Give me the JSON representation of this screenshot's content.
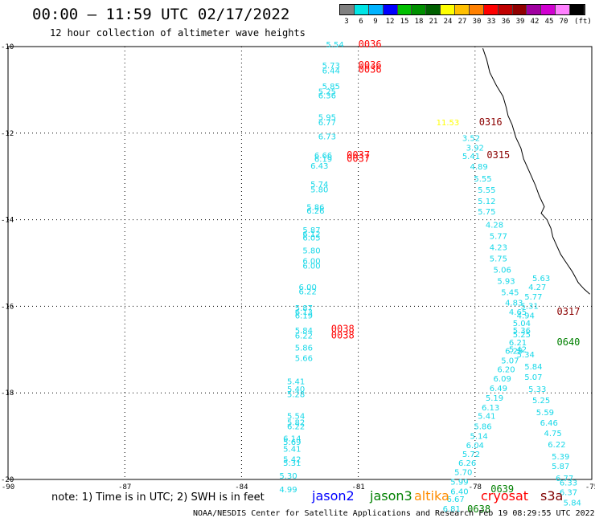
{
  "header": {
    "title": "00:00 – 11:59 UTC 02/17/2022",
    "subtitle": "12 hour collection of altimeter wave heights"
  },
  "colorbar": {
    "labels": [
      "3",
      "6",
      "9",
      "12",
      "15",
      "18",
      "21",
      "24",
      "27",
      "30",
      "33",
      "36",
      "39",
      "42",
      "45",
      "70",
      "(ft)"
    ],
    "colors": [
      "#808080",
      "#00e5e5",
      "#00b3ff",
      "#0000ff",
      "#00c000",
      "#009000",
      "#006000",
      "#ffff00",
      "#ffc000",
      "#ff8000",
      "#ff0000",
      "#c00000",
      "#900000",
      "#a000a0",
      "#d000d0",
      "#ff80ff",
      "#000000"
    ]
  },
  "note": "note: 1) Time is in UTC; 2) SWH is in feet",
  "legend": [
    {
      "name": "jason2",
      "color": "#0000ff"
    },
    {
      "name": "jason3",
      "color": "#008000"
    },
    {
      "name": "altika",
      "color": "#ff8c00"
    },
    {
      "name": "cryosat",
      "color": "#ff0000"
    },
    {
      "name": "s3a",
      "color": "#800000"
    }
  ],
  "footer": "NOAA/NESDIS Center for Satellite Applications and Research   Feb 19 08:29:55 UTC 2022",
  "chart_data": {
    "type": "scatter",
    "xlim": [
      -90,
      -75
    ],
    "ylim": [
      -20,
      -10
    ],
    "x_ticks": [
      "-90",
      "-87",
      "-84",
      "-81",
      "-78",
      "-75"
    ],
    "y_ticks": [
      "-10",
      "-12",
      "-14",
      "-16",
      "-18",
      "-20"
    ],
    "grid": true,
    "swh_labels": [
      {
        "lon": -81.6,
        "lat": -10.02,
        "text": "5.54",
        "color": "cyan"
      },
      {
        "lon": -81.7,
        "lat": -10.5,
        "text": "5.73",
        "color": "cyan"
      },
      {
        "lon": -81.7,
        "lat": -10.62,
        "text": "6.44",
        "color": "cyan"
      },
      {
        "lon": -81.7,
        "lat": -10.98,
        "text": "5.85",
        "color": "cyan"
      },
      {
        "lon": -81.8,
        "lat": -11.1,
        "text": "5.25",
        "color": "cyan"
      },
      {
        "lon": -81.8,
        "lat": -11.2,
        "text": "6.36",
        "color": "cyan"
      },
      {
        "lon": -81.8,
        "lat": -11.7,
        "text": "5.95",
        "color": "cyan"
      },
      {
        "lon": -81.8,
        "lat": -11.82,
        "text": "6.77",
        "color": "cyan"
      },
      {
        "lon": -81.8,
        "lat": -12.14,
        "text": "6.73",
        "color": "cyan"
      },
      {
        "lon": -81.9,
        "lat": -12.58,
        "text": "6.66",
        "color": "cyan"
      },
      {
        "lon": -81.9,
        "lat": -12.66,
        "text": "6.19",
        "color": "cyan"
      },
      {
        "lon": -82.0,
        "lat": -12.82,
        "text": "6.43",
        "color": "cyan"
      },
      {
        "lon": -82.0,
        "lat": -13.25,
        "text": "5.74",
        "color": "cyan"
      },
      {
        "lon": -82.0,
        "lat": -13.37,
        "text": "5.80",
        "color": "cyan"
      },
      {
        "lon": -82.1,
        "lat": -13.78,
        "text": "5.86",
        "color": "cyan"
      },
      {
        "lon": -82.1,
        "lat": -13.86,
        "text": "6.26",
        "color": "cyan"
      },
      {
        "lon": -82.2,
        "lat": -14.3,
        "text": "5.87",
        "color": "cyan"
      },
      {
        "lon": -82.2,
        "lat": -14.4,
        "text": "6.12",
        "color": "cyan"
      },
      {
        "lon": -82.2,
        "lat": -14.48,
        "text": "6.05",
        "color": "cyan"
      },
      {
        "lon": -82.2,
        "lat": -14.78,
        "text": "5.80",
        "color": "cyan"
      },
      {
        "lon": -82.2,
        "lat": -15.02,
        "text": "6.00",
        "color": "cyan"
      },
      {
        "lon": -82.2,
        "lat": -15.13,
        "text": "6.00",
        "color": "cyan"
      },
      {
        "lon": -82.3,
        "lat": -15.62,
        "text": "6.00",
        "color": "cyan"
      },
      {
        "lon": -82.3,
        "lat": -15.72,
        "text": "6.22",
        "color": "cyan"
      },
      {
        "lon": -82.4,
        "lat": -16.1,
        "text": "5.87",
        "color": "cyan"
      },
      {
        "lon": -82.4,
        "lat": -16.2,
        "text": "6.13",
        "color": "cyan"
      },
      {
        "lon": -82.4,
        "lat": -16.28,
        "text": "6.19",
        "color": "cyan"
      },
      {
        "lon": -82.4,
        "lat": -16.62,
        "text": "5.84",
        "color": "cyan"
      },
      {
        "lon": -82.4,
        "lat": -16.74,
        "text": "6.22",
        "color": "cyan"
      },
      {
        "lon": -82.4,
        "lat": -17.02,
        "text": "5.86",
        "color": "cyan"
      },
      {
        "lon": -82.4,
        "lat": -17.26,
        "text": "5.66",
        "color": "cyan"
      },
      {
        "lon": -82.6,
        "lat": -17.8,
        "text": "5.41",
        "color": "cyan"
      },
      {
        "lon": -82.6,
        "lat": -17.98,
        "text": "5.40",
        "color": "cyan"
      },
      {
        "lon": -82.6,
        "lat": -18.1,
        "text": "5.28",
        "color": "cyan"
      },
      {
        "lon": -82.6,
        "lat": -18.6,
        "text": "5.54",
        "color": "cyan"
      },
      {
        "lon": -82.6,
        "lat": -18.75,
        "text": "5.82",
        "color": "cyan"
      },
      {
        "lon": -82.6,
        "lat": -18.84,
        "text": "6.22",
        "color": "cyan"
      },
      {
        "lon": -82.7,
        "lat": -19.12,
        "text": "6.14",
        "color": "cyan"
      },
      {
        "lon": -82.7,
        "lat": -19.2,
        "text": "5.69",
        "color": "cyan"
      },
      {
        "lon": -82.7,
        "lat": -19.36,
        "text": "5.41",
        "color": "cyan"
      },
      {
        "lon": -82.7,
        "lat": -19.6,
        "text": "5.42",
        "color": "cyan"
      },
      {
        "lon": -82.7,
        "lat": -19.68,
        "text": "5.31",
        "color": "cyan"
      },
      {
        "lon": -82.8,
        "lat": -19.98,
        "text": "5.30",
        "color": "cyan"
      },
      {
        "lon": -82.8,
        "lat": -20.3,
        "text": "4.99",
        "color": "cyan"
      },
      {
        "lon": -78.7,
        "lat": -11.82,
        "text": "11.53",
        "color": "yellow"
      },
      {
        "lon": -78.1,
        "lat": -12.18,
        "text": "3.52",
        "color": "cyan"
      },
      {
        "lon": -78.0,
        "lat": -12.4,
        "text": "3.92",
        "color": "cyan"
      },
      {
        "lon": -78.1,
        "lat": -12.6,
        "text": "5.41",
        "color": "cyan"
      },
      {
        "lon": -77.9,
        "lat": -12.84,
        "text": "4.89",
        "color": "cyan"
      },
      {
        "lon": -77.8,
        "lat": -13.12,
        "text": "5.55",
        "color": "cyan"
      },
      {
        "lon": -77.7,
        "lat": -13.38,
        "text": "5.55",
        "color": "cyan"
      },
      {
        "lon": -77.7,
        "lat": -13.64,
        "text": "5.12",
        "color": "cyan"
      },
      {
        "lon": -77.7,
        "lat": -13.88,
        "text": "5.75",
        "color": "cyan"
      },
      {
        "lon": -77.5,
        "lat": -14.18,
        "text": "4.28",
        "color": "cyan"
      },
      {
        "lon": -77.4,
        "lat": -14.44,
        "text": "5.77",
        "color": "cyan"
      },
      {
        "lon": -77.4,
        "lat": -14.7,
        "text": "4.23",
        "color": "cyan"
      },
      {
        "lon": -77.4,
        "lat": -14.96,
        "text": "5.75",
        "color": "cyan"
      },
      {
        "lon": -77.3,
        "lat": -15.22,
        "text": "5.06",
        "color": "cyan"
      },
      {
        "lon": -77.2,
        "lat": -15.48,
        "text": "5.93",
        "color": "cyan"
      },
      {
        "lon": -77.1,
        "lat": -15.74,
        "text": "5.45",
        "color": "cyan"
      },
      {
        "lon": -77.0,
        "lat": -15.98,
        "text": "4.83",
        "color": "cyan"
      },
      {
        "lon": -76.9,
        "lat": -16.2,
        "text": "4.65",
        "color": "cyan"
      },
      {
        "lon": -76.7,
        "lat": -16.28,
        "text": "4.94",
        "color": "cyan"
      },
      {
        "lon": -76.6,
        "lat": -16.06,
        "text": "5.31",
        "color": "cyan"
      },
      {
        "lon": -76.5,
        "lat": -15.84,
        "text": "5.77",
        "color": "cyan"
      },
      {
        "lon": -76.4,
        "lat": -15.62,
        "text": "4.27",
        "color": "cyan"
      },
      {
        "lon": -76.3,
        "lat": -15.42,
        "text": "5.63",
        "color": "cyan"
      },
      {
        "lon": -76.8,
        "lat": -16.46,
        "text": "5.04",
        "color": "cyan"
      },
      {
        "lon": -76.8,
        "lat": -16.62,
        "text": "5.36",
        "color": "cyan"
      },
      {
        "lon": -76.8,
        "lat": -16.72,
        "text": "5.25",
        "color": "cyan"
      },
      {
        "lon": -76.9,
        "lat": -16.9,
        "text": "6.21",
        "color": "cyan"
      },
      {
        "lon": -76.9,
        "lat": -17.06,
        "text": "5.42",
        "color": "cyan"
      },
      {
        "lon": -77.0,
        "lat": -17.1,
        "text": "6.29",
        "color": "cyan"
      },
      {
        "lon": -76.7,
        "lat": -17.18,
        "text": "5.34",
        "color": "cyan"
      },
      {
        "lon": -77.1,
        "lat": -17.32,
        "text": "5.07",
        "color": "cyan"
      },
      {
        "lon": -76.5,
        "lat": -17.46,
        "text": "5.84",
        "color": "cyan"
      },
      {
        "lon": -77.2,
        "lat": -17.52,
        "text": "6.20",
        "color": "cyan"
      },
      {
        "lon": -76.5,
        "lat": -17.7,
        "text": "5.07",
        "color": "cyan"
      },
      {
        "lon": -77.3,
        "lat": -17.74,
        "text": "6.09",
        "color": "cyan"
      },
      {
        "lon": -77.4,
        "lat": -17.96,
        "text": "6.49",
        "color": "cyan"
      },
      {
        "lon": -76.4,
        "lat": -17.98,
        "text": "5.33",
        "color": "cyan"
      },
      {
        "lon": -77.5,
        "lat": -18.18,
        "text": "5.19",
        "color": "cyan"
      },
      {
        "lon": -76.3,
        "lat": -18.24,
        "text": "5.25",
        "color": "cyan"
      },
      {
        "lon": -77.6,
        "lat": -18.4,
        "text": "6.13",
        "color": "cyan"
      },
      {
        "lon": -76.2,
        "lat": -18.52,
        "text": "5.59",
        "color": "cyan"
      },
      {
        "lon": -77.7,
        "lat": -18.6,
        "text": "5.41",
        "color": "cyan"
      },
      {
        "lon": -76.1,
        "lat": -18.76,
        "text": "6.46",
        "color": "cyan"
      },
      {
        "lon": -77.8,
        "lat": -18.84,
        "text": "5.86",
        "color": "cyan"
      },
      {
        "lon": -76.0,
        "lat": -19.0,
        "text": "4.75",
        "color": "cyan"
      },
      {
        "lon": -77.9,
        "lat": -19.06,
        "text": "5.14",
        "color": "cyan"
      },
      {
        "lon": -75.9,
        "lat": -19.26,
        "text": "6.22",
        "color": "cyan"
      },
      {
        "lon": -78.0,
        "lat": -19.28,
        "text": "6.04",
        "color": "cyan"
      },
      {
        "lon": -78.1,
        "lat": -19.48,
        "text": "5.72",
        "color": "cyan"
      },
      {
        "lon": -75.8,
        "lat": -19.54,
        "text": "5.39",
        "color": "cyan"
      },
      {
        "lon": -78.2,
        "lat": -19.68,
        "text": "6.26",
        "color": "cyan"
      },
      {
        "lon": -75.8,
        "lat": -19.76,
        "text": "5.87",
        "color": "cyan"
      },
      {
        "lon": -78.3,
        "lat": -19.9,
        "text": "5.70",
        "color": "cyan"
      },
      {
        "lon": -75.7,
        "lat": -20.04,
        "text": "6.77",
        "color": "cyan"
      },
      {
        "lon": -78.4,
        "lat": -20.12,
        "text": "5.99",
        "color": "cyan"
      },
      {
        "lon": -75.6,
        "lat": -20.14,
        "text": "6.33",
        "color": "cyan"
      },
      {
        "lon": -78.4,
        "lat": -20.34,
        "text": "6.40",
        "color": "cyan"
      },
      {
        "lon": -75.6,
        "lat": -20.36,
        "text": "6.37",
        "color": "cyan"
      },
      {
        "lon": -78.5,
        "lat": -20.52,
        "text": "6.67",
        "color": "cyan"
      },
      {
        "lon": -75.5,
        "lat": -20.6,
        "text": "5.84",
        "color": "cyan"
      },
      {
        "lon": -78.6,
        "lat": -20.74,
        "text": "6.81",
        "color": "cyan"
      }
    ],
    "time_labels": [
      {
        "lon": -80.7,
        "lat": -10.02,
        "text": "0036",
        "color": "red"
      },
      {
        "lon": -80.7,
        "lat": -10.5,
        "text": "0036",
        "color": "red"
      },
      {
        "lon": -80.7,
        "lat": -10.6,
        "text": "0036",
        "color": "red"
      },
      {
        "lon": -81.0,
        "lat": -12.58,
        "text": "0037",
        "color": "red"
      },
      {
        "lon": -81.0,
        "lat": -12.66,
        "text": "0037",
        "color": "red"
      },
      {
        "lon": -81.4,
        "lat": -16.6,
        "text": "0038",
        "color": "red"
      },
      {
        "lon": -81.4,
        "lat": -16.74,
        "text": "0038",
        "color": "red"
      },
      {
        "lon": -77.6,
        "lat": -11.82,
        "text": "0316",
        "color": "darkred"
      },
      {
        "lon": -77.4,
        "lat": -12.58,
        "text": "0315",
        "color": "darkred"
      },
      {
        "lon": -75.6,
        "lat": -16.2,
        "text": "0317",
        "color": "darkred"
      },
      {
        "lon": -75.6,
        "lat": -16.9,
        "text": "0640",
        "color": "green"
      },
      {
        "lon": -77.3,
        "lat": -20.3,
        "text": "0639",
        "color": "green"
      },
      {
        "lon": -77.9,
        "lat": -20.76,
        "text": "0638",
        "color": "green"
      }
    ],
    "coastline": [
      [
        -77.8,
        -10.04
      ],
      [
        -77.7,
        -10.3
      ],
      [
        -77.62,
        -10.6
      ],
      [
        -77.45,
        -10.9
      ],
      [
        -77.28,
        -11.15
      ],
      [
        -77.2,
        -11.4
      ],
      [
        -77.15,
        -11.6
      ],
      [
        -77.05,
        -11.8
      ],
      [
        -76.95,
        -12.1
      ],
      [
        -76.82,
        -12.35
      ],
      [
        -76.75,
        -12.6
      ],
      [
        -76.6,
        -12.9
      ],
      [
        -76.45,
        -13.2
      ],
      [
        -76.35,
        -13.45
      ],
      [
        -76.22,
        -13.7
      ],
      [
        -76.3,
        -13.85
      ],
      [
        -76.15,
        -14.0
      ],
      [
        -76.05,
        -14.2
      ],
      [
        -76.0,
        -14.4
      ],
      [
        -75.9,
        -14.6
      ],
      [
        -75.8,
        -14.8
      ],
      [
        -75.65,
        -15.0
      ],
      [
        -75.5,
        -15.2
      ],
      [
        -75.35,
        -15.45
      ],
      [
        -75.2,
        -15.6
      ],
      [
        -75.05,
        -15.72
      ]
    ]
  }
}
